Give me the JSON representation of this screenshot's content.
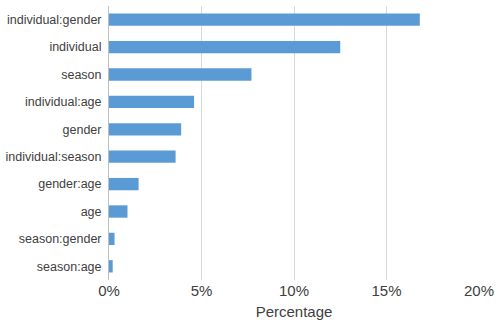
{
  "chart_data": {
    "type": "bar",
    "orientation": "horizontal",
    "x_label": "Percentage",
    "categories": [
      "individual:gender",
      "individual",
      "season",
      "individual:age",
      "gender",
      "individual:season",
      "gender:age",
      "age",
      "season:gender",
      "season:age"
    ],
    "values": [
      16.8,
      12.5,
      7.7,
      4.6,
      3.9,
      3.6,
      1.6,
      1.0,
      0.3,
      0.2
    ],
    "color": "#5b9bd5",
    "xlim": [
      0,
      20
    ],
    "xticks": [
      {
        "value": 0,
        "label": "0%"
      },
      {
        "value": 5,
        "label": "5%"
      },
      {
        "value": 10,
        "label": "10%"
      },
      {
        "value": 15,
        "label": "15%"
      },
      {
        "value": 20,
        "label": "20%"
      }
    ],
    "grid": true
  }
}
